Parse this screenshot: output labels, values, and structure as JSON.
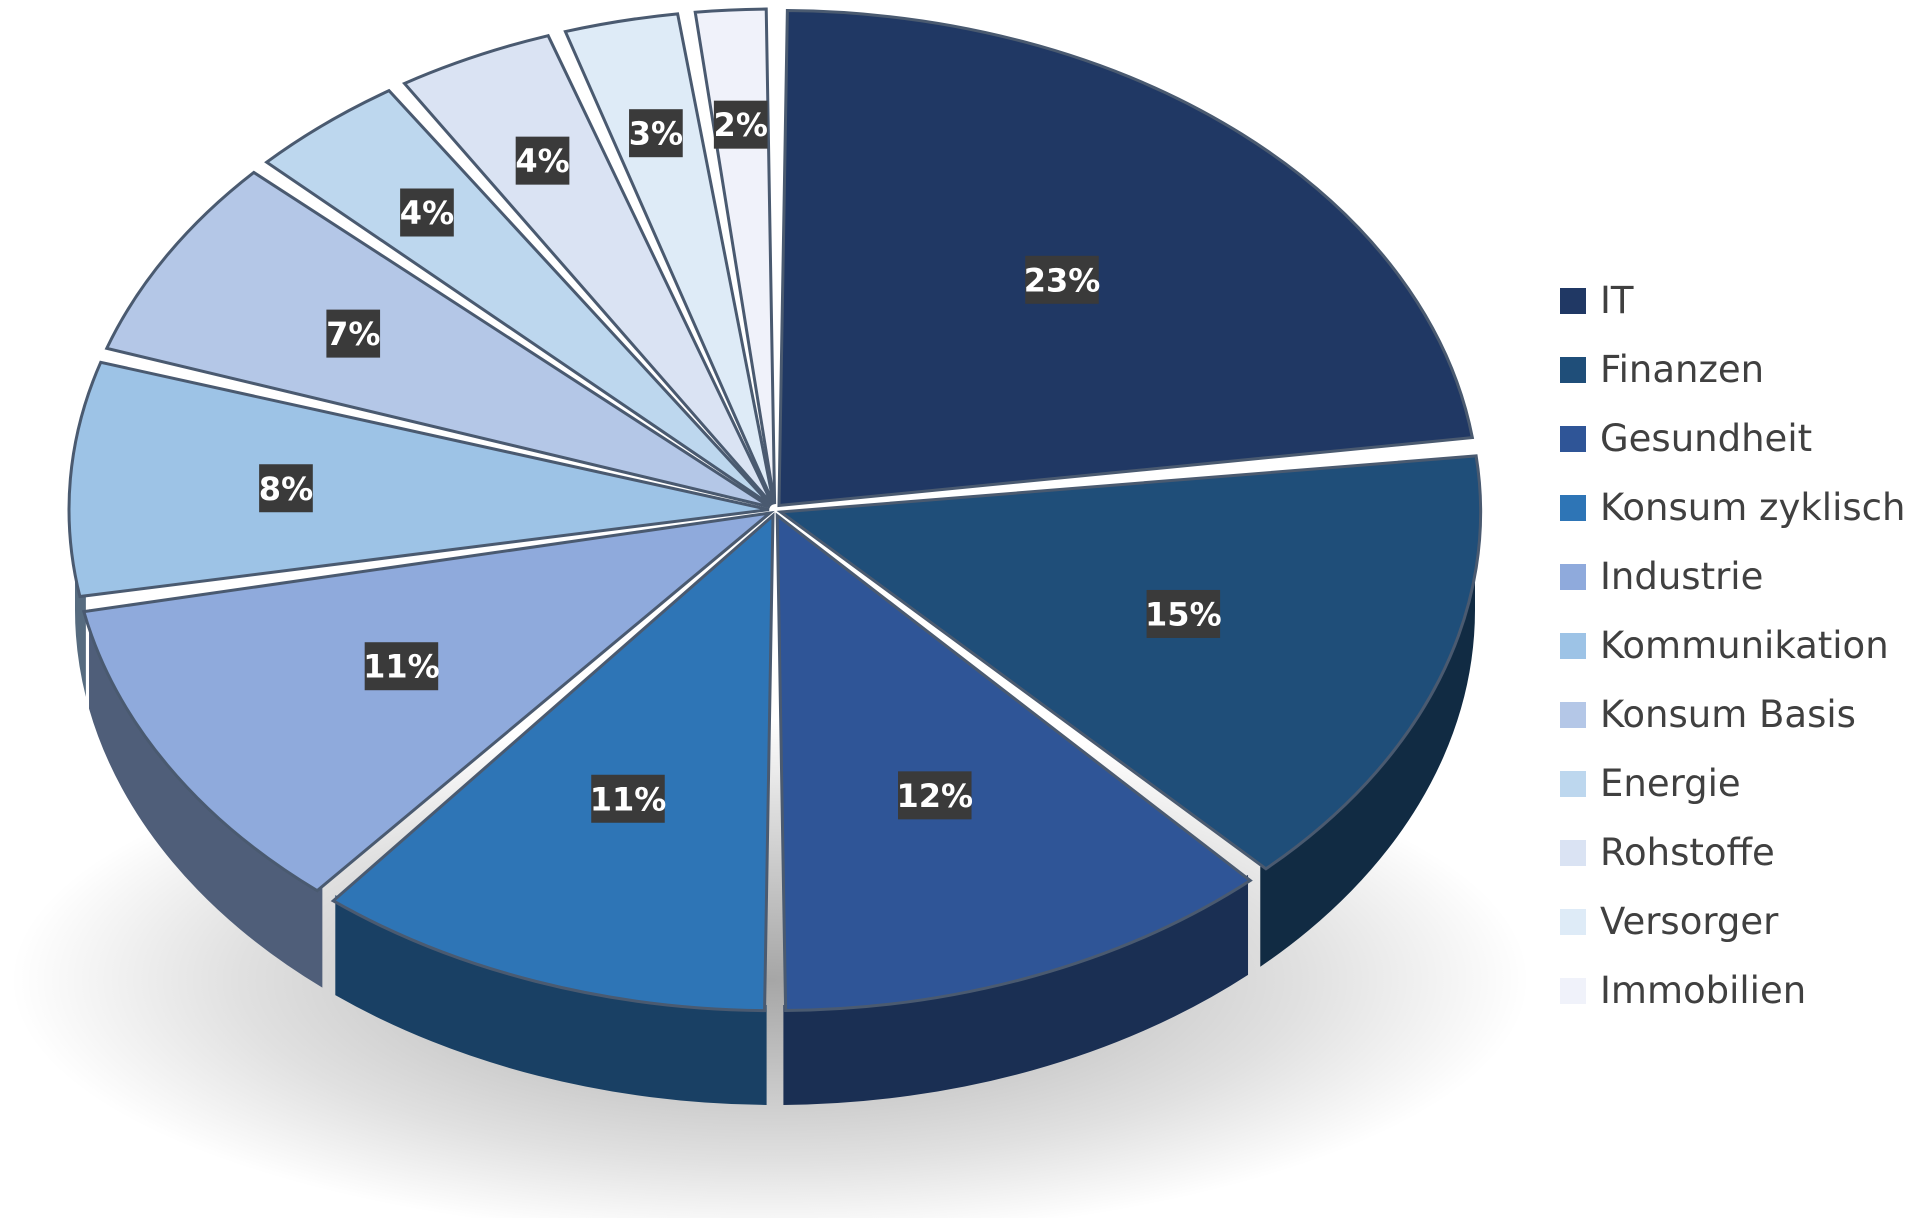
{
  "chart_data": {
    "type": "pie",
    "variant": "3d",
    "legend_position": "right",
    "slices": [
      {
        "name": "IT",
        "value": 23,
        "label": "23%",
        "color": "#203864"
      },
      {
        "name": "Finanzen",
        "value": 15,
        "label": "15%",
        "color": "#1f4e79"
      },
      {
        "name": "Gesundheit",
        "value": 12,
        "label": "12%",
        "color": "#2f5597"
      },
      {
        "name": "Konsum zyklisch",
        "value": 11,
        "label": "11%",
        "color": "#2e75b6"
      },
      {
        "name": "Industrie",
        "value": 11,
        "label": "11%",
        "color": "#8faadc"
      },
      {
        "name": "Kommunikation",
        "value": 8,
        "label": "8%",
        "color": "#9dc3e6"
      },
      {
        "name": "Konsum Basis",
        "value": 7,
        "label": "7%",
        "color": "#b4c7e7"
      },
      {
        "name": "Energie",
        "value": 4,
        "label": "4%",
        "color": "#bdd7ee"
      },
      {
        "name": "Rohstoffe",
        "value": 4,
        "label": "4%",
        "color": "#dae3f3"
      },
      {
        "name": "Versorger",
        "value": 3,
        "label": "3%",
        "color": "#deebf7"
      },
      {
        "name": "Immobilien",
        "value": 2,
        "label": "2%",
        "color": "#f0f2fa"
      }
    ]
  }
}
